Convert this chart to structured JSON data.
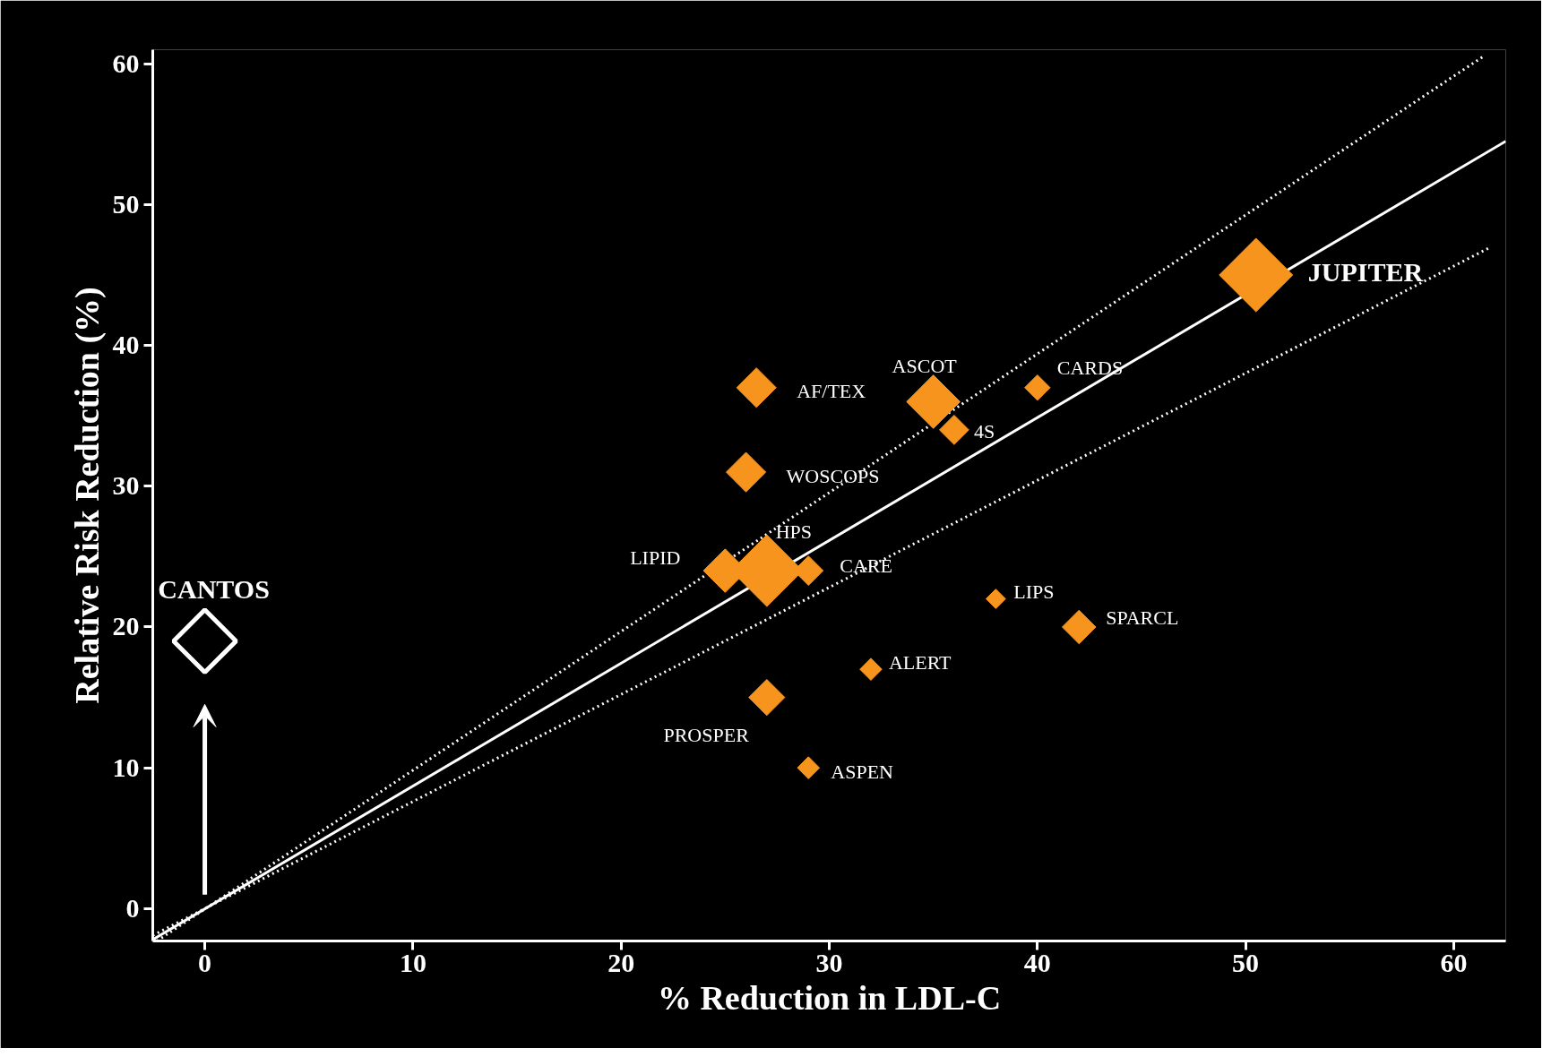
{
  "chart_data": {
    "type": "bubble",
    "xlabel": "% Reduction in LDL-C",
    "ylabel": "Relative Risk Reduction (%)",
    "xlim": [
      -2.5,
      62.5
    ],
    "ylim": [
      -2.3,
      61
    ],
    "xticks": [
      0,
      10,
      20,
      30,
      40,
      50,
      60
    ],
    "yticks": [
      0,
      10,
      20,
      30,
      40,
      50,
      60
    ],
    "grid": false,
    "marker": "diamond",
    "series": [
      {
        "color": "#f7941d",
        "x": [
          50.5,
          35,
          36,
          40,
          26.5,
          26,
          27,
          25,
          29,
          38,
          42,
          32,
          27,
          29
        ],
        "values": [
          45,
          36,
          34,
          37,
          37,
          31,
          24,
          24,
          24,
          22,
          20,
          17,
          15,
          10
        ],
        "sizes": [
          1,
          0.53,
          0.16,
          0.12,
          0.29,
          0.29,
          0.95,
          0.35,
          0.16,
          0.07,
          0.21,
          0.09,
          0.24,
          0.09
        ]
      },
      {
        "type": "scatter",
        "color": "#ffffff",
        "x": [
          0
        ],
        "values": [
          19
        ]
      },
      {
        "type": "line",
        "color": "#ffffff",
        "marker": "none",
        "line_style": "solid",
        "x": [
          -2.5,
          62.5
        ],
        "values": [
          -2.2,
          54.5
        ]
      },
      {
        "type": "line",
        "color": "#ffffff",
        "marker": "none",
        "line_style": "dotted",
        "x": [
          -2.3,
          61.5
        ],
        "values": [
          -2.3,
          60.6
        ]
      },
      {
        "type": "line",
        "color": "#ffffff",
        "marker": "none",
        "line_style": "dotted",
        "x": [
          -2.5,
          61.8
        ],
        "values": [
          -1.9,
          47
        ]
      }
    ],
    "annotations": [
      {
        "text": "JUPITER",
        "x": 50.5,
        "y": 45
      },
      {
        "text": "ASCOT",
        "x": 35,
        "y": 36
      },
      {
        "text": "4S",
        "x": 36,
        "y": 34
      },
      {
        "text": "CARDS",
        "x": 40,
        "y": 37
      },
      {
        "text": "AF/TEX",
        "x": 26.5,
        "y": 37
      },
      {
        "text": "WOSCOPS",
        "x": 26,
        "y": 31
      },
      {
        "text": "HPS",
        "x": 27,
        "y": 24
      },
      {
        "text": "LIPID",
        "x": 25,
        "y": 24
      },
      {
        "text": "CARE",
        "x": 29,
        "y": 24
      },
      {
        "text": "LIPS",
        "x": 38,
        "y": 22
      },
      {
        "text": "SPARCL",
        "x": 42,
        "y": 20
      },
      {
        "text": "ALERT",
        "x": 32,
        "y": 17
      },
      {
        "text": "PROSPER",
        "x": 27,
        "y": 15
      },
      {
        "text": "ASPEN",
        "x": 29,
        "y": 10
      },
      {
        "text": "CANTOS",
        "x": 0,
        "y": 19
      }
    ]
  }
}
